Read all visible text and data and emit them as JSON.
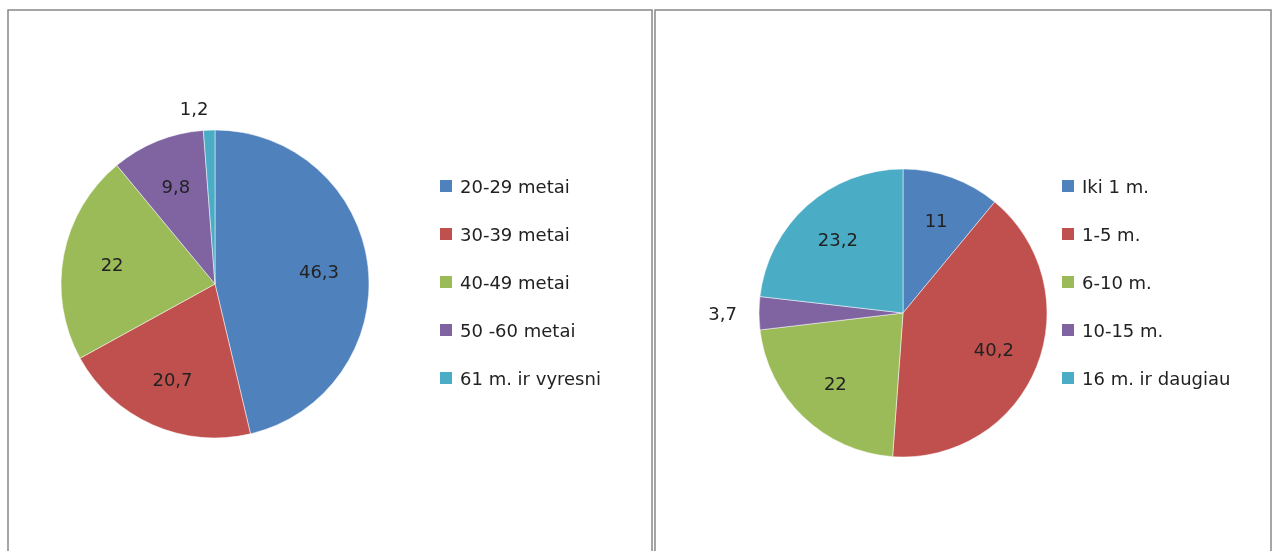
{
  "chart_data": [
    {
      "type": "pie",
      "categories": [
        "20-29 metai",
        "30-39 metai",
        "40-49 metai",
        "50 -60 metai",
        "61 m. ir vyresni"
      ],
      "values": [
        46.3,
        20.7,
        22,
        9.8,
        1.2
      ],
      "colors": [
        "#4f81bd",
        "#c0504d",
        "#9bbb59",
        "#8064a2",
        "#4bacc6"
      ],
      "value_labels": [
        "46,3",
        "20,7",
        "22",
        "9,8",
        "1,2"
      ],
      "legend": "right"
    },
    {
      "type": "pie",
      "categories": [
        "Iki 1 m.",
        "1-5 m.",
        "6-10 m.",
        "10-15 m.",
        "16 m. ir daugiau"
      ],
      "values": [
        11,
        40.2,
        22,
        3.7,
        23.2
      ],
      "colors": [
        "#4f81bd",
        "#c0504d",
        "#9bbb59",
        "#8064a2",
        "#4bacc6"
      ],
      "value_labels": [
        "11",
        "40,2",
        "22",
        "3,7",
        "23,2"
      ],
      "legend": "right"
    }
  ]
}
